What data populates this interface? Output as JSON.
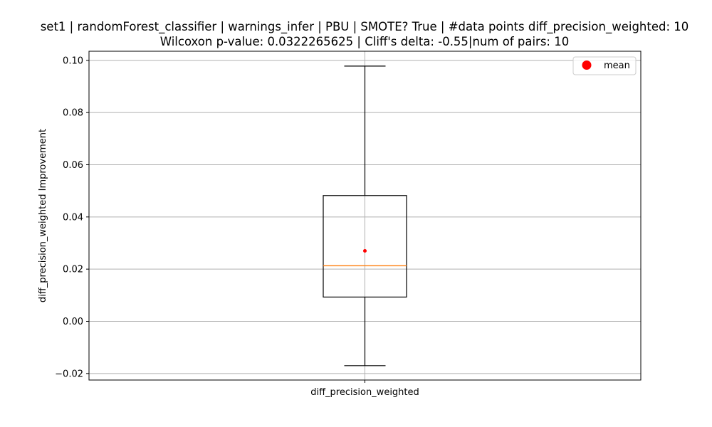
{
  "chart_data": {
    "type": "boxplot",
    "title_line1": "set1 | randomForest_classifier | warnings_infer | PBU | SMOTE? True | #data points diff_precision_weighted: 10",
    "title_line2": "Wilcoxon p-value: 0.0322265625 | Cliff's delta: -0.55|num of pairs: 10",
    "xlabel": "",
    "ylabel": "diff_precision_weighted Improvement",
    "categories": [
      "diff_precision_weighted"
    ],
    "ylim": [
      -0.0225,
      0.1035
    ],
    "yticks": [
      -0.02,
      0.0,
      0.02,
      0.04,
      0.06,
      0.08,
      0.1
    ],
    "ytick_labels": [
      "−0.02",
      "0.00",
      "0.02",
      "0.04",
      "0.06",
      "0.08",
      "0.10"
    ],
    "grid": true,
    "legend": {
      "placement": "top-right",
      "entries": [
        {
          "label": "mean",
          "color": "#ff0000",
          "marker": "circle"
        }
      ]
    },
    "boxes": [
      {
        "name": "diff_precision_weighted",
        "whisker_low": -0.017,
        "q1": 0.0093,
        "median": 0.0213,
        "q3": 0.0482,
        "whisker_high": 0.0978,
        "mean": 0.027
      }
    ],
    "colors": {
      "box": "#000000",
      "median": "#ff7f0e",
      "mean": "#ff0000",
      "grid": "#b0b0b0"
    }
  }
}
